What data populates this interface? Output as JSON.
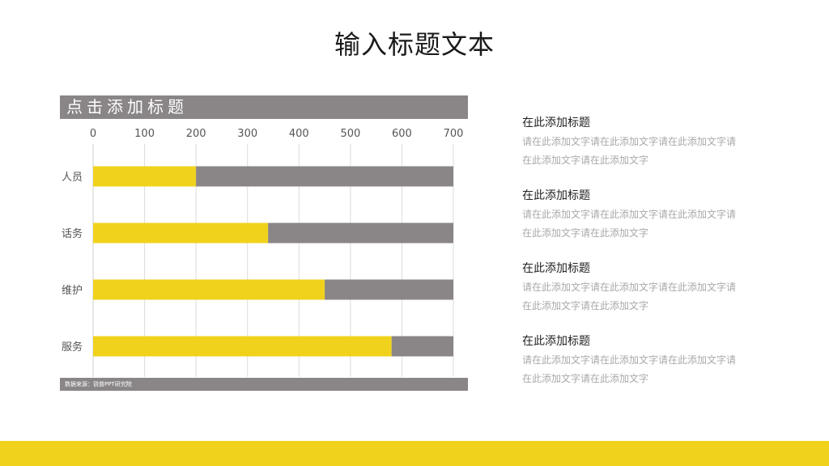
{
  "page": {
    "title": "输入标题文本"
  },
  "chart_header": "点击添加标题",
  "chart_footer": "数据来源：锐普PPT研究院",
  "chart_data": {
    "type": "bar",
    "orientation": "horizontal",
    "stacked": true,
    "categories": [
      "人员",
      "话务",
      "维护",
      "服务"
    ],
    "series": [
      {
        "values": [
          200,
          340,
          450,
          580
        ],
        "color": "#f0d21c"
      },
      {
        "values": [
          500,
          360,
          250,
          120
        ],
        "color": "#8a8586"
      }
    ],
    "xlim": [
      0,
      700
    ],
    "xticks": [
      "0",
      "100",
      "200",
      "300",
      "400",
      "500",
      "600",
      "700"
    ],
    "xlabel": "",
    "ylabel": "",
    "grid": true,
    "legend": "none"
  },
  "notes": [
    {
      "title": "在此添加标题",
      "body": "请在此添加文字请在此添加文字请在此添加文字请在此添加文字请在此添加文字"
    },
    {
      "title": "在此添加标题",
      "body": "请在此添加文字请在此添加文字请在此添加文字请在此添加文字请在此添加文字"
    },
    {
      "title": "在此添加标题",
      "body": "请在此添加文字请在此添加文字请在此添加文字请在此添加文字请在此添加文字"
    },
    {
      "title": "在此添加标题",
      "body": "请在此添加文字请在此添加文字请在此添加文字请在此添加文字请在此添加文字"
    }
  ],
  "colors": {
    "accent": "#f0d21c",
    "neutral": "#8a8586"
  }
}
